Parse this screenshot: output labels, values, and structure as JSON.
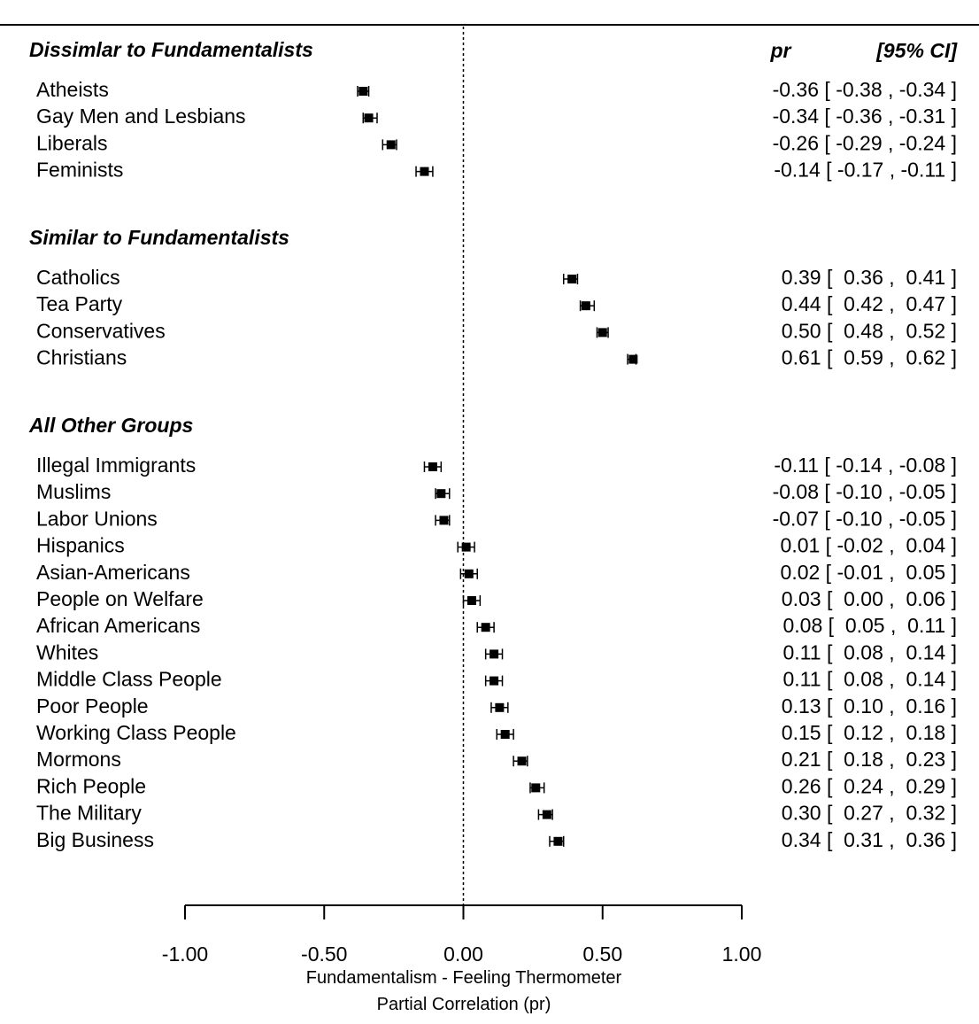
{
  "chart_data": {
    "type": "forest",
    "xlabel": "Fundamentalism - Feeling Thermometer",
    "xlabel2": "Partial Correlation (pr)",
    "xlim": [
      -1.0,
      1.0
    ],
    "xticks": [
      "-1.00",
      "-0.50",
      "0.00",
      "0.50",
      "1.00"
    ],
    "reference_line": 0,
    "columns": {
      "pr": "pr",
      "ci": "[95% CI]"
    },
    "groups": [
      {
        "title": "Dissimlar to Fundamentalists",
        "items": [
          {
            "label": "Atheists",
            "pr": -0.36,
            "lo": -0.38,
            "hi": -0.34,
            "text": "-0.36 [ -0.38 , -0.34 ]"
          },
          {
            "label": "Gay Men and Lesbians",
            "pr": -0.34,
            "lo": -0.36,
            "hi": -0.31,
            "text": "-0.34 [ -0.36 , -0.31 ]"
          },
          {
            "label": "Liberals",
            "pr": -0.26,
            "lo": -0.29,
            "hi": -0.24,
            "text": "-0.26 [ -0.29 , -0.24 ]"
          },
          {
            "label": "Feminists",
            "pr": -0.14,
            "lo": -0.17,
            "hi": -0.11,
            "text": "-0.14 [ -0.17 , -0.11 ]"
          }
        ]
      },
      {
        "title": "Similar to Fundamentalists",
        "items": [
          {
            "label": "Catholics",
            "pr": 0.39,
            "lo": 0.36,
            "hi": 0.41,
            "text": "0.39 [  0.36 ,  0.41 ]"
          },
          {
            "label": "Tea Party",
            "pr": 0.44,
            "lo": 0.42,
            "hi": 0.47,
            "text": "0.44 [  0.42 ,  0.47 ]"
          },
          {
            "label": "Conservatives",
            "pr": 0.5,
            "lo": 0.48,
            "hi": 0.52,
            "text": "0.50 [  0.48 ,  0.52 ]"
          },
          {
            "label": "Christians",
            "pr": 0.61,
            "lo": 0.59,
            "hi": 0.62,
            "text": "0.61 [  0.59 ,  0.62 ]"
          }
        ]
      },
      {
        "title": "All Other Groups",
        "items": [
          {
            "label": "Illegal Immigrants",
            "pr": -0.11,
            "lo": -0.14,
            "hi": -0.08,
            "text": "-0.11 [ -0.14 , -0.08 ]"
          },
          {
            "label": "Muslims",
            "pr": -0.08,
            "lo": -0.1,
            "hi": -0.05,
            "text": "-0.08 [ -0.10 , -0.05 ]"
          },
          {
            "label": "Labor Unions",
            "pr": -0.07,
            "lo": -0.1,
            "hi": -0.05,
            "text": "-0.07 [ -0.10 , -0.05 ]"
          },
          {
            "label": "Hispanics",
            "pr": 0.01,
            "lo": -0.02,
            "hi": 0.04,
            "text": "0.01 [ -0.02 ,  0.04 ]"
          },
          {
            "label": "Asian-Americans",
            "pr": 0.02,
            "lo": -0.01,
            "hi": 0.05,
            "text": "0.02 [ -0.01 ,  0.05 ]"
          },
          {
            "label": "People on Welfare",
            "pr": 0.03,
            "lo": 0.0,
            "hi": 0.06,
            "text": "0.03 [  0.00 ,  0.06 ]"
          },
          {
            "label": "African Americans",
            "pr": 0.08,
            "lo": 0.05,
            "hi": 0.11,
            "text": "0.08 [  0.05 ,  0.11 ]"
          },
          {
            "label": "Whites",
            "pr": 0.11,
            "lo": 0.08,
            "hi": 0.14,
            "text": "0.11 [  0.08 ,  0.14 ]"
          },
          {
            "label": "Middle Class People",
            "pr": 0.11,
            "lo": 0.08,
            "hi": 0.14,
            "text": "0.11 [  0.08 ,  0.14 ]"
          },
          {
            "label": "Poor People",
            "pr": 0.13,
            "lo": 0.1,
            "hi": 0.16,
            "text": "0.13 [  0.10 ,  0.16 ]"
          },
          {
            "label": "Working Class People",
            "pr": 0.15,
            "lo": 0.12,
            "hi": 0.18,
            "text": "0.15 [  0.12 ,  0.18 ]"
          },
          {
            "label": "Mormons",
            "pr": 0.21,
            "lo": 0.18,
            "hi": 0.23,
            "text": "0.21 [  0.18 ,  0.23 ]"
          },
          {
            "label": "Rich People",
            "pr": 0.26,
            "lo": 0.24,
            "hi": 0.29,
            "text": "0.26 [  0.24 ,  0.29 ]"
          },
          {
            "label": "The Military",
            "pr": 0.3,
            "lo": 0.27,
            "hi": 0.32,
            "text": "0.30 [  0.27 ,  0.32 ]"
          },
          {
            "label": "Big Business",
            "pr": 0.34,
            "lo": 0.31,
            "hi": 0.36,
            "text": "0.34 [  0.31 ,  0.36 ]"
          }
        ]
      }
    ]
  }
}
